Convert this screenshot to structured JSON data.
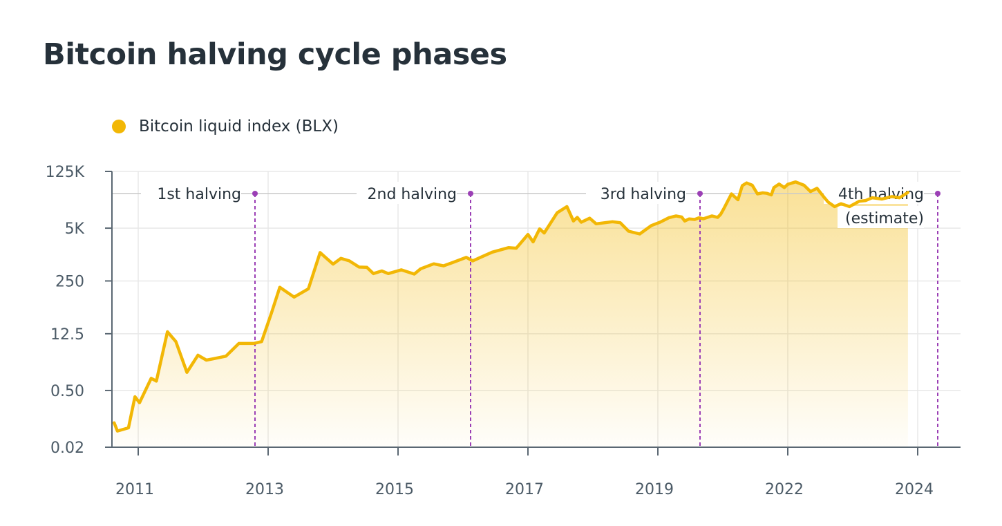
{
  "title": "Bitcoin halving cycle phases",
  "colors": {
    "series": "#f2b705",
    "halving_line": "#9b3fb5",
    "axis": "#5a6772",
    "grid": "#e8e8e8",
    "text": "#26313a"
  },
  "chart_data": {
    "type": "area",
    "title": "Bitcoin halving cycle phases",
    "y_scale": "log",
    "ylim": [
      0.02,
      125000
    ],
    "y_ticks": [
      {
        "value": 125000,
        "label": "125K"
      },
      {
        "value": 5000,
        "label": "5K"
      },
      {
        "value": 250,
        "label": "250"
      },
      {
        "value": 12.5,
        "label": "12.5"
      },
      {
        "value": 0.5,
        "label": "0.50"
      },
      {
        "value": 0.02,
        "label": "0.02"
      }
    ],
    "x_ticks": [
      2011,
      2013,
      2015,
      2017,
      2019,
      2022,
      2024
    ],
    "xlim": [
      2010.6,
      2024.65
    ],
    "grid": true,
    "legend": {
      "position": "top-left",
      "entries": [
        "Bitcoin liquid index (BLX)"
      ]
    },
    "series": [
      {
        "name": "Bitcoin liquid index (BLX)",
        "x": [
          2010.63,
          2010.68,
          2010.85,
          2010.95,
          2011.02,
          2011.2,
          2011.28,
          2011.45,
          2011.58,
          2011.75,
          2011.92,
          2012.05,
          2012.15,
          2012.35,
          2012.55,
          2012.78,
          2012.9,
          2013.05,
          2013.18,
          2013.4,
          2013.62,
          2013.8,
          2013.9,
          2014.0,
          2014.12,
          2014.25,
          2014.4,
          2014.52,
          2014.62,
          2014.75,
          2014.85,
          2015.05,
          2015.25,
          2015.35,
          2015.55,
          2015.7,
          2015.85,
          2016.05,
          2016.15,
          2016.3,
          2016.45,
          2016.7,
          2016.82,
          2017.0,
          2017.08,
          2017.18,
          2017.25,
          2017.45,
          2017.6,
          2017.7,
          2017.76,
          2017.82,
          2017.95,
          2018.05,
          2018.3,
          2018.42,
          2018.55,
          2018.72,
          2018.9,
          2019.05,
          2019.25,
          2019.42,
          2019.55,
          2019.62,
          2019.72,
          2019.85,
          2019.95,
          2020.05,
          2020.25,
          2020.38,
          2020.45,
          2020.52,
          2020.62,
          2020.7,
          2020.85,
          2020.95,
          2021.05,
          2021.18,
          2021.3,
          2021.42,
          2021.52,
          2021.62,
          2021.68,
          2021.8,
          2021.92,
          2022.0,
          2022.12,
          2022.25,
          2022.35,
          2022.45,
          2022.55,
          2022.62,
          2022.72,
          2022.82,
          2022.95,
          2023.1,
          2023.2,
          2023.3,
          2023.45,
          2023.6,
          2023.72,
          2023.85
        ],
        "values": [
          0.08,
          0.05,
          0.06,
          0.35,
          0.25,
          1.0,
          0.85,
          14,
          8,
          1.4,
          3.7,
          2.8,
          3.0,
          3.5,
          7.2,
          7.2,
          8.0,
          40,
          175,
          100,
          160,
          1250,
          900,
          650,
          900,
          780,
          550,
          540,
          380,
          440,
          380,
          470,
          370,
          500,
          660,
          590,
          720,
          950,
          780,
          1000,
          1280,
          1650,
          1600,
          3500,
          2300,
          4800,
          3800,
          12000,
          17000,
          7500,
          9200,
          7000,
          8800,
          6400,
          7200,
          6800,
          4200,
          3600,
          5800,
          7000,
          9000,
          10000,
          9400,
          7500,
          8400,
          8200,
          9000,
          8500,
          10000,
          9200,
          11000,
          15000,
          24000,
          35000,
          25000,
          56000,
          65000,
          57000,
          35000,
          37000,
          36000,
          33000,
          50000,
          61000,
          50000,
          60000,
          69000,
          57000,
          40000,
          48000,
          30000,
          22000,
          17000,
          20000,
          17000,
          23000,
          24000,
          28000,
          26000,
          30000,
          28000,
          38000
        ]
      }
    ],
    "annotations": [
      {
        "label": "1st halving",
        "x": 2012.9
      },
      {
        "label": "2nd halving",
        "x": 2016.5
      },
      {
        "label": "3rd halving",
        "x": 2020.4
      },
      {
        "label": "4th halving",
        "sublabel": "(estimate)",
        "x": 2024.33
      }
    ]
  }
}
